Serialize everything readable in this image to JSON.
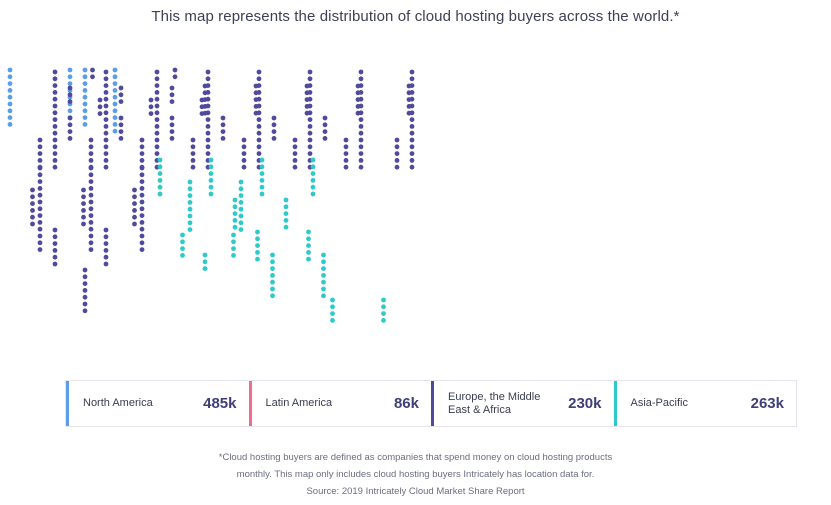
{
  "title": "This map represents the distribution of cloud hosting buyers across the world.*",
  "regions": [
    {
      "name": "North America",
      "value": "485k",
      "color": "#5b9ee6"
    },
    {
      "name": "Latin America",
      "value": "86k",
      "color": "#f06b8e"
    },
    {
      "name": "Europe, the Middle East & Africa",
      "value": "230k",
      "color": "#4f4a9c"
    },
    {
      "name": "Asia-Pacific",
      "value": "263k",
      "color": "#2ec9c9"
    }
  ],
  "footnote": {
    "line1": "*Cloud hosting buyers are defined as companies that spend money on cloud hosting products",
    "line2": "monthly. This map only includes cloud hosting buyers Intricately has location data for.",
    "line3": "Source: 2019 Intricately Cloud Market Share Report"
  }
}
